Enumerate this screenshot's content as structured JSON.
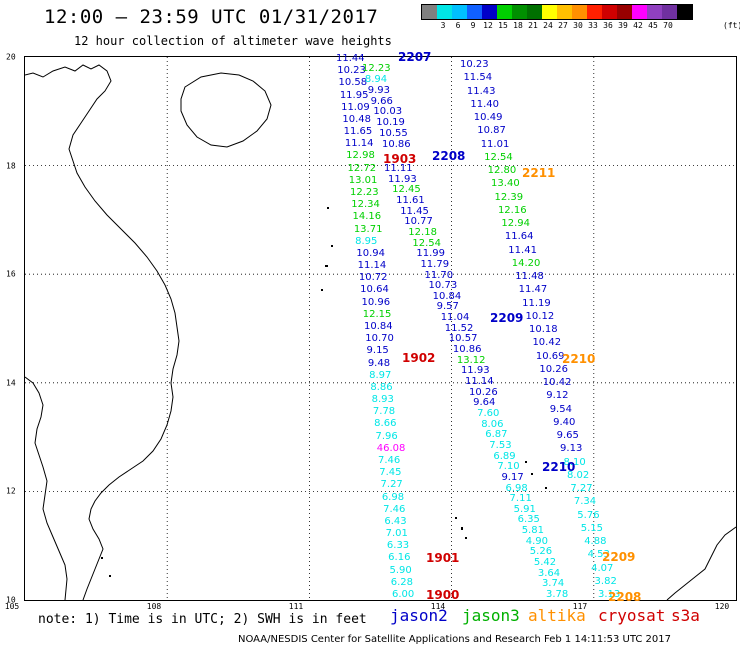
{
  "header": {
    "title": "12:00 – 23:59 UTC 01/31/2017",
    "subtitle": "12 hour collection of altimeter wave heights"
  },
  "color_scale": {
    "unit": "(ft)",
    "colors": [
      "#808080",
      "#00e6e6",
      "#00c0ff",
      "#1060ff",
      "#0000c8",
      "#00d000",
      "#009000",
      "#007000",
      "#ffff00",
      "#ffc000",
      "#ff9000",
      "#ff2000",
      "#d00000",
      "#980000",
      "#ff00ff",
      "#9040c0",
      "#7030a0",
      "#000000"
    ],
    "labels": [
      "3",
      "6",
      "9",
      "12",
      "15",
      "18",
      "21",
      "24",
      "27",
      "30",
      "33",
      "36",
      "39",
      "42",
      "45",
      "70"
    ]
  },
  "map": {
    "lat_labels": [
      "20",
      "18",
      "16",
      "14",
      "12",
      "10"
    ],
    "lon_labels": [
      "105",
      "108",
      "111",
      "114",
      "117",
      "120"
    ]
  },
  "tracks": {
    "jason2_2207": [
      "11.44",
      "10.23",
      "10.58",
      "11.95",
      "11.09",
      "10.48",
      "11.65",
      "11.14",
      "12.98",
      "12.72",
      "13.01",
      "12.23",
      "12.34",
      "14.16",
      "13.71",
      "8.95",
      "10.94",
      "11.14",
      "10.72",
      "10.64",
      "10.96",
      "12.15",
      "10.84",
      "10.70",
      "9.15",
      "9.48",
      "8.97",
      "8.86",
      "8.93",
      "7.78",
      "8.66",
      "7.96",
      "46.08",
      "7.46",
      "7.45",
      "7.27",
      "6.98",
      "7.46",
      "6.43",
      "7.01",
      "6.33",
      "6.16",
      "5.90",
      "6.28",
      "6.00"
    ],
    "jason2_2207_col2": [
      "12.23",
      "8.94",
      "9.93",
      "9.66",
      "10.03",
      "10.19",
      "10.55",
      "10.86"
    ],
    "jason2_2208": [
      "11.11",
      "11.93",
      "12.45",
      "11.61",
      "11.45",
      "10.77",
      "12.18",
      "12.54",
      "11.99",
      "11.79",
      "11.70",
      "10.73",
      "10.84",
      "9.57",
      "11.04",
      "11.52",
      "10.57",
      "10.86",
      "13.12",
      "11.93",
      "11.14",
      "10.26",
      "9.64",
      "7.60",
      "8.06",
      "6.87",
      "7.53",
      "6.89",
      "7.10",
      "9.17",
      "6.98",
      "7.11",
      "5.91",
      "6.35",
      "5.81",
      "4.90",
      "5.26",
      "5.42",
      "3.64",
      "3.74",
      "3.78"
    ],
    "jason2_2211": [
      "10.23",
      "11.54",
      "11.43",
      "11.40",
      "10.49",
      "10.87",
      "11.01",
      "12.54",
      "12.80",
      "13.40",
      "12.39",
      "12.16",
      "12.94",
      "11.64",
      "11.41",
      "14.20",
      "11.48",
      "11.47",
      "11.19",
      "10.12",
      "10.18",
      "10.42",
      "10.69",
      "10.26",
      "10.42",
      "9.12",
      "9.54",
      "9.40",
      "9.65",
      "9.13",
      "8.10",
      "8.02",
      "7.27",
      "7.34",
      "5.76",
      "5.15",
      "4.88",
      "4.53",
      "4.07",
      "3.82",
      "3.13"
    ]
  },
  "pass_labels": [
    {
      "text": "2207",
      "color": "#0000c8"
    },
    {
      "text": "1903",
      "color": "#d00000"
    },
    {
      "text": "2208",
      "color": "#0000c8"
    },
    {
      "text": "2211",
      "color": "#ff9000"
    },
    {
      "text": "2209",
      "color": "#0000c8"
    },
    {
      "text": "1902",
      "color": "#d00000"
    },
    {
      "text": "2210",
      "color": "#ff9000"
    },
    {
      "text": "2210",
      "color": "#0000c8"
    },
    {
      "text": "1901",
      "color": "#d00000"
    },
    {
      "text": "2209",
      "color": "#ff9000"
    },
    {
      "text": "1900",
      "color": "#d00000"
    },
    {
      "text": "2208",
      "color": "#ff9000"
    }
  ],
  "legend": {
    "note": "note: 1) Time is in UTC; 2) SWH is in feet",
    "satellites": [
      {
        "name": "jason2",
        "color": "#0000c8"
      },
      {
        "name": "jason3",
        "color": "#00b000"
      },
      {
        "name": "altika",
        "color": "#ff9000"
      },
      {
        "name": "cryosat",
        "color": "#d00000"
      },
      {
        "name": "s3a",
        "color": "#d00000"
      }
    ]
  },
  "credit": "NOAA/NESDIS Center for Satellite Applications and Research   Feb  1 14:11:53 UTC 2017"
}
